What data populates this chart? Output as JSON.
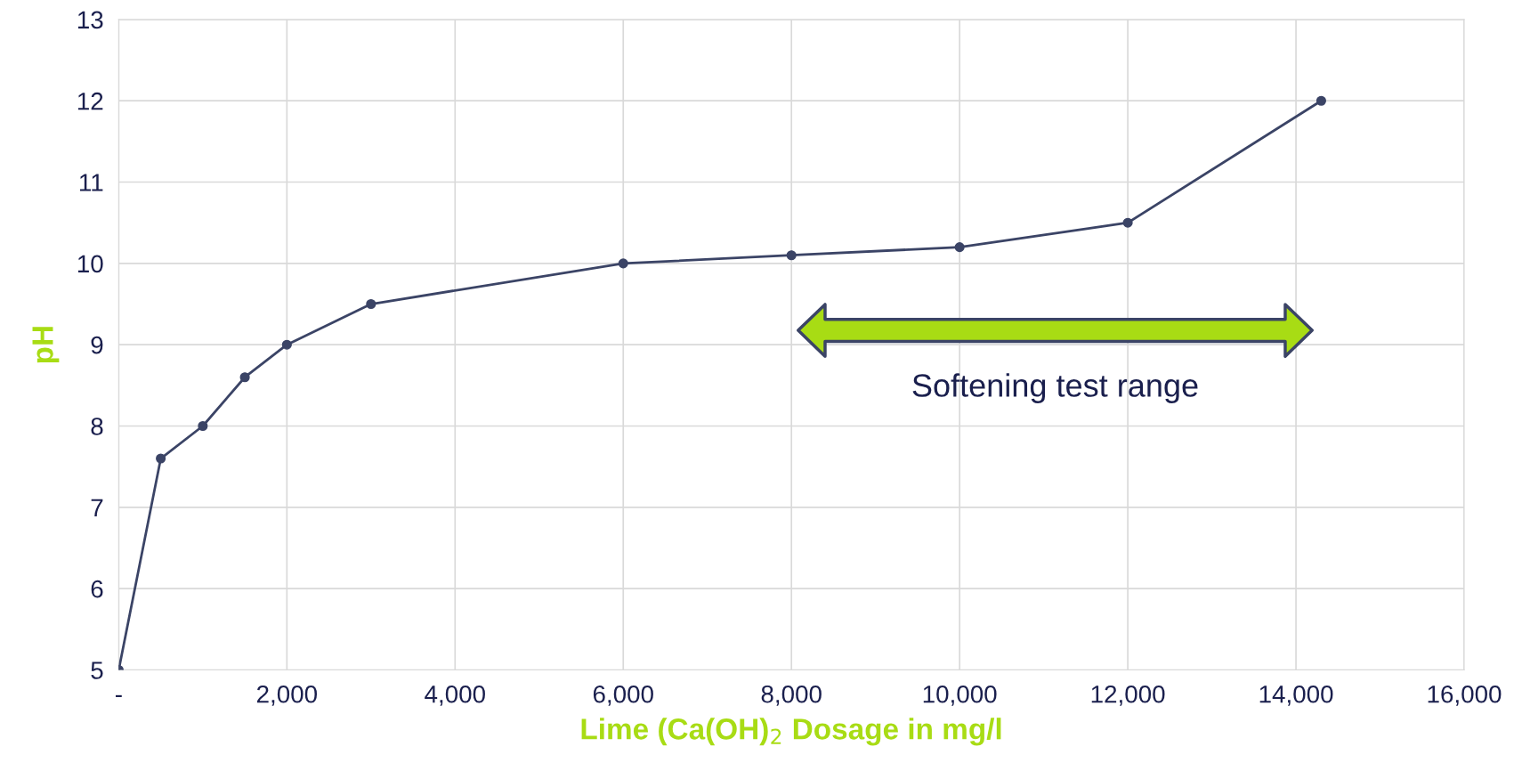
{
  "chart_data": {
    "type": "line",
    "xlabel": "Lime (Ca(OH)$_{2}$ Dosage in mg/l",
    "ylabel": "pH",
    "x": [
      0,
      500,
      1000,
      1500,
      2000,
      3000,
      6000,
      8000,
      10000,
      12000,
      14300
    ],
    "series": [
      {
        "color": "#3b4466",
        "values": [
          5,
          7.6,
          8.0,
          8.6,
          9.0,
          9.5,
          10.0,
          10.1,
          10.2,
          10.5,
          12.0
        ]
      }
    ],
    "xlim": [
      0,
      16000
    ],
    "xticks": [
      {
        "value": 0,
        "label": "-"
      },
      {
        "value": 2000,
        "label": "2,000"
      },
      {
        "value": 4000,
        "label": "4,000"
      },
      {
        "value": 6000,
        "label": "6,000"
      },
      {
        "value": 8000,
        "label": "8,000"
      },
      {
        "value": 10000,
        "label": "10,000"
      },
      {
        "value": 12000,
        "label": "12,000"
      },
      {
        "value": 14000,
        "label": "14,000"
      },
      {
        "value": 16000,
        "label": "16,000"
      }
    ],
    "ylim": [
      5,
      13
    ],
    "yticks": [
      5,
      6,
      7,
      8,
      9,
      10,
      11,
      12,
      13
    ],
    "grid": true,
    "marker": "circle",
    "line_style": "solid",
    "annotations": [
      "Softening test range"
    ]
  }
}
